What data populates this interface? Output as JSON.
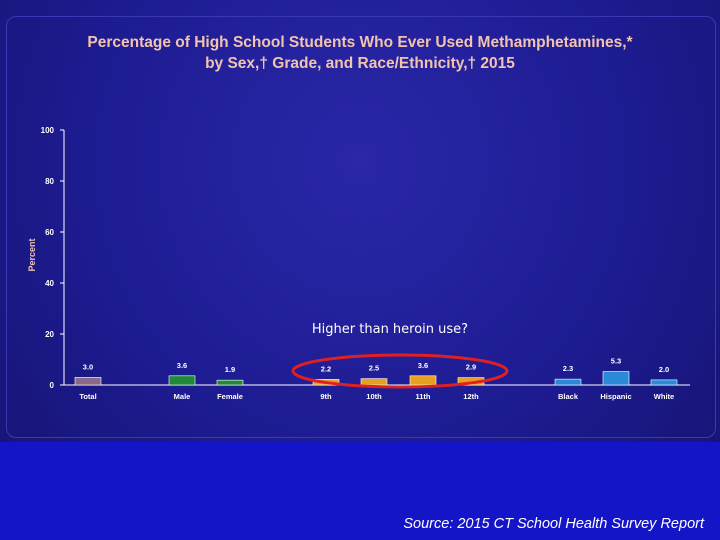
{
  "slide": {
    "title_line1": "Percentage of High School Students Who Ever Used Methamphetamines,*",
    "title_line2": "by Sex,† Grade, and Race/Ethnicity,† 2015",
    "source": "Source: 2015 CT School Health Survey Report",
    "annotation": "Higher than heroin use?"
  },
  "chart_data": {
    "type": "bar",
    "title": "Percentage of High School Students Who Ever Used Methamphetamines,* by Sex,† Grade, and Race/Ethnicity,† 2015",
    "ylabel": "Percent",
    "xlabel": "",
    "ylim": [
      0,
      100
    ],
    "yticks": [
      0,
      20,
      40,
      60,
      80,
      100
    ],
    "categories": [
      "Total",
      "Male",
      "Female",
      "9th",
      "10th",
      "11th",
      "12th",
      "Black",
      "Hispanic",
      "White"
    ],
    "values": [
      3.0,
      3.6,
      1.9,
      2.2,
      2.5,
      3.6,
      2.9,
      2.3,
      5.3,
      2.0
    ],
    "value_labels": [
      "3.0",
      "3.6",
      "1.9",
      "2.2",
      "2.5",
      "3.6",
      "2.9",
      "2.3",
      "5.3",
      "2.0"
    ],
    "colors": [
      "#8a6a8a",
      "#1f8a3a",
      "#1f8a3a",
      "#e8a020",
      "#e8a020",
      "#e8a020",
      "#e8a020",
      "#2a8ad8",
      "#2a8ad8",
      "#2a8ad8"
    ],
    "grid": false,
    "highlight": {
      "categories": [
        "9th",
        "10th",
        "11th",
        "12th"
      ],
      "color": "#e02020"
    }
  }
}
